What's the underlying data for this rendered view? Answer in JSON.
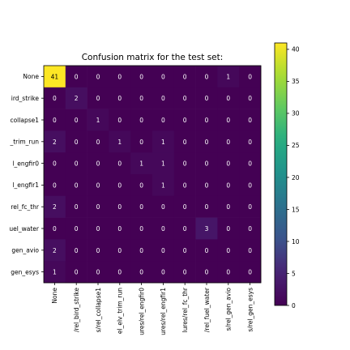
{
  "chart_data": {
    "type": "heatmap",
    "title": "Confusion matrix for the test set:",
    "row_labels": [
      "None",
      "ird_strike",
      "collapse1",
      "_trim_run",
      "l_engfir0",
      "l_engfir1",
      "rel_fc_thr",
      "uel_water",
      "gen_avio",
      "gen_esys"
    ],
    "col_labels": [
      "None",
      "/rel_bird_strike",
      "s/rel_collapse1",
      "el_elv_trim_run",
      "ures/rel_engfir0",
      "ures/rel_engfir1",
      "lures/rel_fc_thr",
      "/rel_fuel_water",
      "s/rel_gen_avio",
      "s/rel_gen_esys"
    ],
    "values": [
      [
        41,
        0,
        0,
        0,
        0,
        0,
        0,
        0,
        1,
        0
      ],
      [
        0,
        2,
        0,
        0,
        0,
        0,
        0,
        0,
        0,
        0
      ],
      [
        0,
        0,
        1,
        0,
        0,
        0,
        0,
        0,
        0,
        0
      ],
      [
        2,
        0,
        0,
        1,
        0,
        1,
        0,
        0,
        0,
        0
      ],
      [
        0,
        0,
        0,
        0,
        1,
        1,
        0,
        0,
        0,
        0
      ],
      [
        0,
        0,
        0,
        0,
        0,
        1,
        0,
        0,
        0,
        0
      ],
      [
        2,
        0,
        0,
        0,
        0,
        0,
        0,
        0,
        0,
        0
      ],
      [
        0,
        0,
        0,
        0,
        0,
        0,
        0,
        3,
        0,
        0
      ],
      [
        2,
        0,
        0,
        0,
        0,
        0,
        0,
        0,
        0,
        0
      ],
      [
        1,
        0,
        0,
        0,
        0,
        0,
        0,
        0,
        0,
        0
      ]
    ],
    "colormap": "viridis",
    "colorbar": {
      "ticks": [
        0,
        5,
        10,
        15,
        20,
        25,
        30,
        35,
        40
      ],
      "min": 0,
      "max": 41
    },
    "grid": false
  }
}
